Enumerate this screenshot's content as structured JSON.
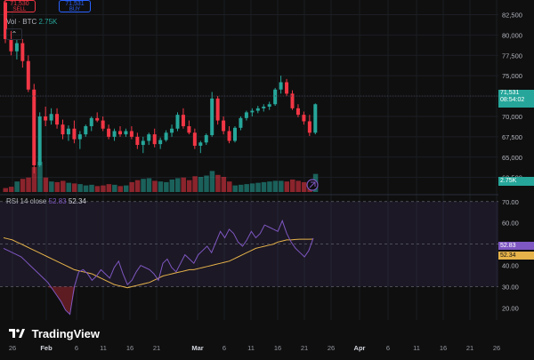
{
  "trade": {
    "sell_price": "71,530",
    "sell_label": "SELL",
    "buy_price": "71,531",
    "buy_label": "BUY"
  },
  "collapse_glyph": "⌃",
  "volume_legend": {
    "label": "Vol · BTC",
    "value": "2.75K"
  },
  "rsi_legend": {
    "label": "RSI 14 close",
    "rsi_value": "52.83",
    "ma_value": "52.34"
  },
  "tags": {
    "last_price": "71,531",
    "countdown": "08:54:02",
    "volume": "2.75K",
    "rsi": "52.83",
    "rsi_ma": "52.34"
  },
  "logo": {
    "text": "TradingView",
    "icon": "tradingview-logo-icon"
  },
  "colors": {
    "up": "#26a69a",
    "down": "#f23645",
    "rsi": "#7e57c2",
    "rsi_ma": "#e6b34a",
    "background": "#0f0f0f"
  },
  "chart_data": [
    {
      "type": "candlestick",
      "title": "",
      "price_axis": {
        "ticks": [
          "82,500",
          "80,000",
          "77,500",
          "75,000",
          "72,500",
          "70,000",
          "67,500",
          "65,000",
          "62,500"
        ],
        "range": [
          60500,
          84300
        ]
      },
      "time_axis": {
        "labels": [
          "26",
          "Feb",
          "6",
          "11",
          "16",
          "21",
          "Mar",
          "6",
          "11",
          "16",
          "21",
          "26",
          "Apr",
          "6",
          "11",
          "16",
          "21",
          "26"
        ]
      },
      "last_price": 71531,
      "ohlc": [
        [
          84000,
          84500,
          79000,
          79500
        ],
        [
          79500,
          80500,
          77500,
          78000
        ],
        [
          78000,
          79500,
          77000,
          79000
        ],
        [
          79000,
          79500,
          76000,
          76800
        ],
        [
          76800,
          77500,
          73000,
          73300
        ],
        [
          73300,
          74000,
          63000,
          64000
        ],
        [
          64000,
          70500,
          63800,
          70000
        ],
        [
          70000,
          71200,
          68800,
          69500
        ],
        [
          69500,
          71000,
          69000,
          70300
        ],
        [
          70300,
          71000,
          68500,
          69000
        ],
        [
          69000,
          69600,
          67200,
          67800
        ],
        [
          67800,
          68900,
          67000,
          68500
        ],
        [
          68500,
          69500,
          66700,
          67200
        ],
        [
          67200,
          68200,
          66000,
          67800
        ],
        [
          67800,
          69000,
          67500,
          68800
        ],
        [
          68800,
          70000,
          68200,
          69800
        ],
        [
          69800,
          70500,
          69300,
          69500
        ],
        [
          69500,
          70000,
          68200,
          68500
        ],
        [
          68500,
          69000,
          67200,
          67500
        ],
        [
          67500,
          68500,
          67000,
          68200
        ],
        [
          68200,
          68800,
          67500,
          67800
        ],
        [
          67800,
          68500,
          67500,
          68200
        ],
        [
          68200,
          68800,
          67200,
          67500
        ],
        [
          67500,
          68000,
          66000,
          66500
        ],
        [
          66500,
          67500,
          65500,
          67000
        ],
        [
          67000,
          68000,
          66500,
          67800
        ],
        [
          67800,
          68500,
          66200,
          66600
        ],
        [
          66600,
          67400,
          66000,
          67100
        ],
        [
          67100,
          68300,
          66900,
          68000
        ],
        [
          68000,
          69000,
          67500,
          68500
        ],
        [
          68500,
          70500,
          68200,
          70200
        ],
        [
          70200,
          71000,
          68500,
          68800
        ],
        [
          68800,
          69500,
          67800,
          68000
        ],
        [
          68000,
          68500,
          66000,
          66400
        ],
        [
          66400,
          67000,
          65500,
          66800
        ],
        [
          66800,
          67900,
          66500,
          67700
        ],
        [
          67700,
          73000,
          67500,
          72200
        ],
        [
          72200,
          72500,
          69000,
          69500
        ],
        [
          69500,
          70000,
          67800,
          68200
        ],
        [
          68200,
          68800,
          66700,
          67000
        ],
        [
          67000,
          68800,
          66800,
          68600
        ],
        [
          68600,
          70000,
          68300,
          69800
        ],
        [
          69800,
          70700,
          69500,
          70500
        ],
        [
          70500,
          71000,
          70000,
          70700
        ],
        [
          70700,
          71300,
          70400,
          71000
        ],
        [
          71000,
          71500,
          70600,
          71200
        ],
        [
          71200,
          71800,
          70800,
          71500
        ],
        [
          71500,
          73500,
          71300,
          73300
        ],
        [
          73300,
          75000,
          72800,
          74200
        ],
        [
          74200,
          74600,
          72500,
          72800
        ],
        [
          72800,
          73200,
          70800,
          71000
        ],
        [
          71000,
          71500,
          69900,
          70200
        ],
        [
          70200,
          70600,
          69000,
          69400
        ],
        [
          69400,
          70200,
          67600,
          68000
        ],
        [
          68000,
          71600,
          67800,
          71500
        ]
      ],
      "volume": [
        600,
        800,
        1600,
        2000,
        2200,
        3800,
        4600,
        2200,
        1600,
        1500,
        1700,
        1400,
        1300,
        1200,
        1000,
        1100,
        900,
        1000,
        1200,
        1100,
        900,
        1000,
        1500,
        1800,
        2000,
        2100,
        1700,
        1600,
        1500,
        1900,
        2100,
        2200,
        1800,
        2400,
        2300,
        2500,
        3200,
        2600,
        2300,
        1600,
        1000,
        1100,
        1200,
        1300,
        1400,
        1500,
        1600,
        1700,
        1700,
        1600,
        1900,
        1700,
        1500,
        1000,
        2750
      ]
    },
    {
      "type": "line",
      "title": "RSI 14 close",
      "y_axis": {
        "ticks": [
          "70.00",
          "60.00",
          "50.00",
          "40.00",
          "30.00",
          "20.00"
        ],
        "range": [
          16,
          72
        ]
      },
      "bands": {
        "upper": 70,
        "lower": 30
      },
      "series": [
        {
          "name": "RSI",
          "values": [
            48,
            47,
            46,
            45,
            44,
            42,
            40,
            38,
            36,
            34,
            32,
            29,
            26,
            23,
            19,
            17,
            30,
            37,
            38,
            36,
            33,
            35,
            38,
            36,
            34,
            39,
            42,
            36,
            31,
            33,
            37,
            40,
            39,
            38,
            36,
            33,
            41,
            43,
            39,
            37,
            41,
            45,
            43,
            41,
            45,
            47,
            49,
            46,
            51,
            56,
            53,
            57,
            55,
            51,
            49,
            52,
            56,
            53,
            55,
            59,
            58,
            57,
            56,
            61,
            55,
            51,
            48,
            46,
            44,
            47,
            52.83
          ]
        },
        {
          "name": "MA",
          "values": [
            53,
            52.5,
            52,
            51,
            50,
            49,
            48,
            47,
            46,
            45,
            44,
            43,
            42,
            41,
            40,
            39,
            38,
            37.5,
            37,
            36.5,
            36,
            35,
            34,
            33,
            32,
            31,
            30.5,
            30,
            29.5,
            30,
            30.5,
            31,
            31.5,
            32,
            33,
            34,
            35,
            35.5,
            36,
            36.5,
            37,
            37.5,
            38,
            38,
            38.5,
            39,
            39.5,
            40,
            40.5,
            41,
            41.5,
            42,
            43,
            44,
            45,
            46,
            47,
            48,
            48.5,
            49,
            49.5,
            50,
            51,
            51.5,
            52,
            52,
            52.2,
            52.3,
            52.3,
            52.3,
            52.34
          ]
        }
      ]
    }
  ]
}
